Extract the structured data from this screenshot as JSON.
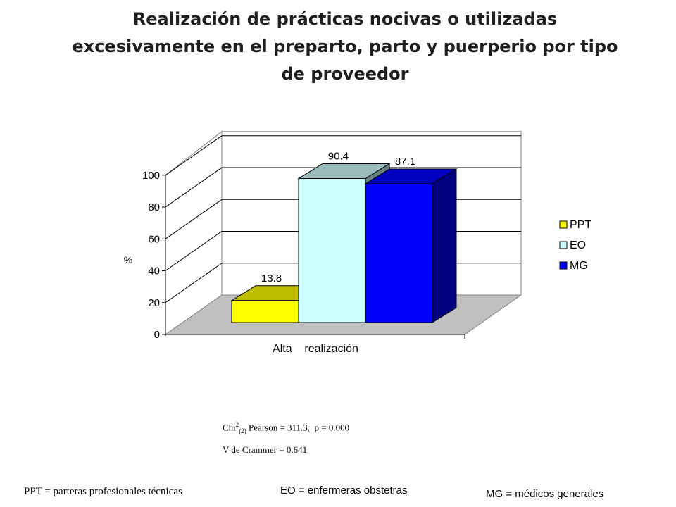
{
  "title": "Realización de prácticas nocivas o utilizadas excesivamente en el preparto, parto y puerperio por tipo de proveedor",
  "chart_data": {
    "type": "bar",
    "categories": [
      "Alta    realización"
    ],
    "series": [
      {
        "name": "PPT",
        "values": [
          13.8
        ],
        "color": "#ffff00"
      },
      {
        "name": "EO",
        "values": [
          90.4
        ],
        "color": "#ccffff"
      },
      {
        "name": "MG",
        "values": [
          87.1
        ],
        "color": "#0000ff"
      }
    ],
    "ylabel": "%",
    "ylim": [
      0,
      100
    ],
    "yticks": [
      0,
      20,
      40,
      60,
      80,
      100
    ],
    "legend_position": "right",
    "grid": true,
    "three_d": true
  },
  "stats": {
    "chi_prefix": "Chi",
    "chi_sup": "2",
    "chi_sub": "(2)",
    "chi_rest": " Pearson = 311.3,  p = 0.000",
    "cramer": "V de Crammer = 0.641"
  },
  "footnotes": {
    "ppt": "PPT = parteras profesionales técnicas",
    "eo": "EO  =  enfermeras obstetras",
    "mg": "MG  = médicos generales"
  }
}
